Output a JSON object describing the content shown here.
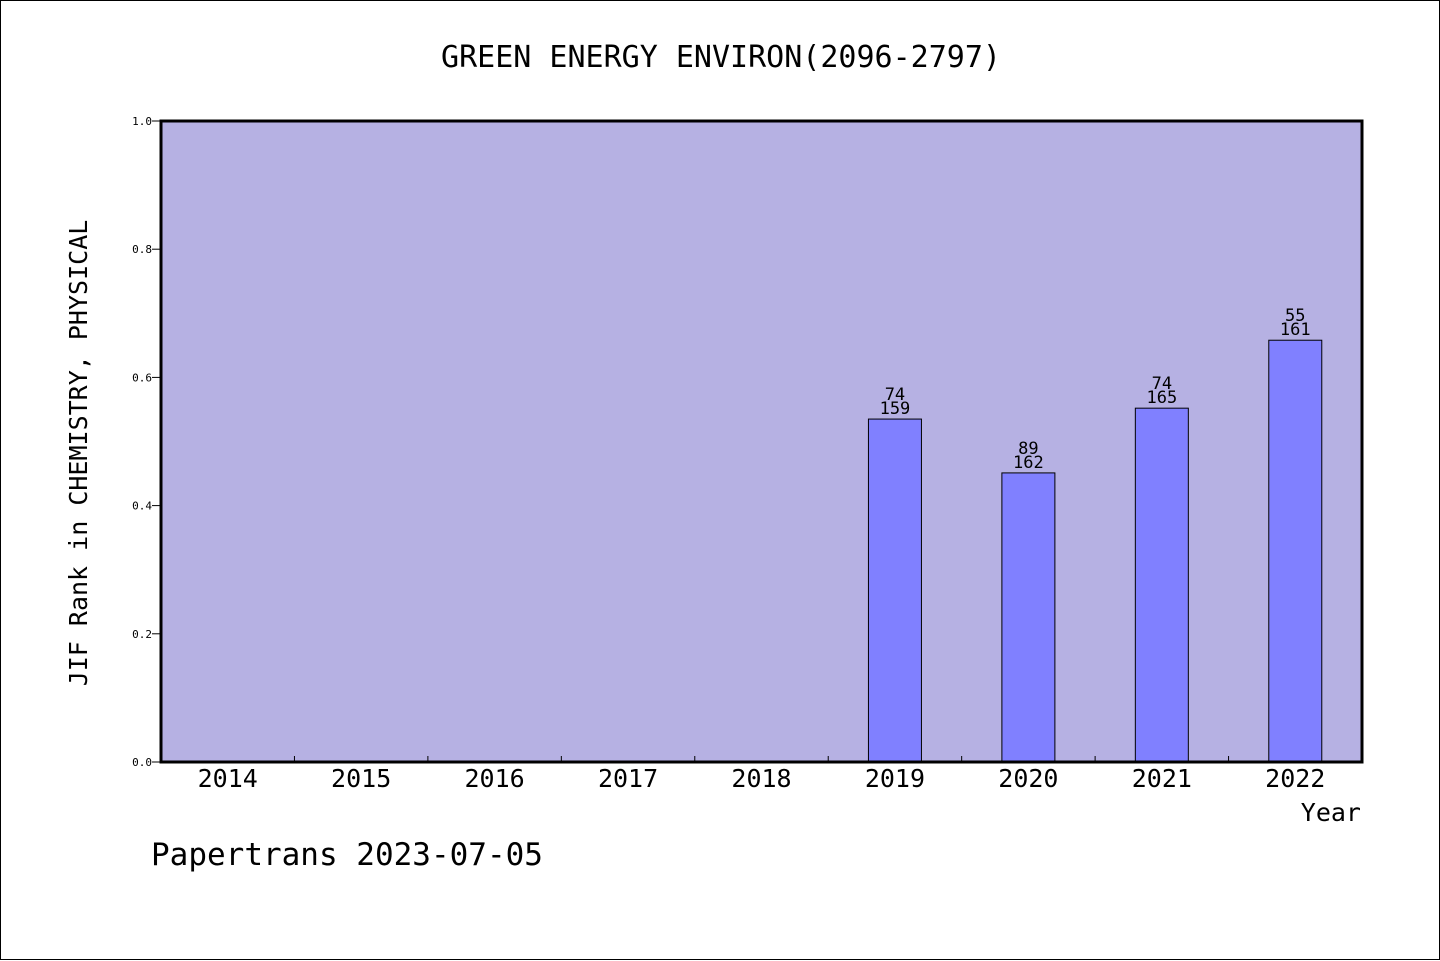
{
  "chart_data": {
    "type": "bar",
    "title": "GREEN ENERGY ENVIRON(2096-2797)",
    "xlabel": "Year",
    "ylabel": "JIF Rank in CHEMISTRY, PHYSICAL",
    "ylim": [
      0,
      1
    ],
    "yticks": [
      "0.0",
      "0.2",
      "0.4",
      "0.6",
      "0.8",
      "1.0"
    ],
    "categories": [
      "2014",
      "2015",
      "2016",
      "2017",
      "2018",
      "2019",
      "2020",
      "2021",
      "2022"
    ],
    "values": [
      null,
      null,
      null,
      null,
      null,
      0.535,
      0.451,
      0.552,
      0.658
    ],
    "bar_labels": [
      null,
      null,
      null,
      null,
      null,
      [
        "74",
        "159"
      ],
      [
        "89",
        "162"
      ],
      [
        "74",
        "165"
      ],
      [
        "55",
        "161"
      ]
    ],
    "grid": false,
    "colors": {
      "plot_bg": "#b6b1e3",
      "bar": "#8080ff",
      "axis": "#000000"
    }
  },
  "footer": {
    "text": "Papertrans 2023-07-05"
  }
}
